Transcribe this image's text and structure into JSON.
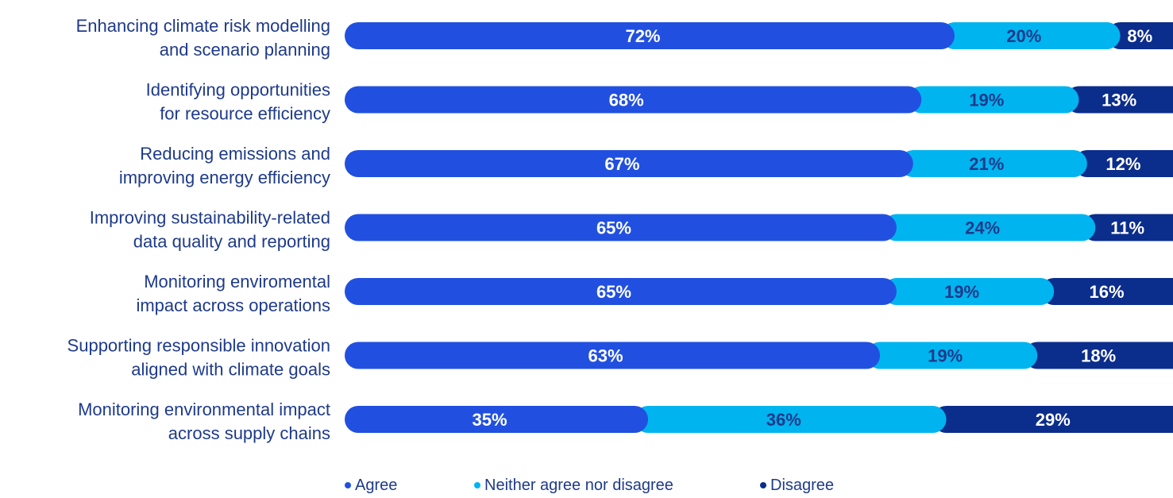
{
  "chart_data": {
    "type": "bar",
    "orientation": "horizontal",
    "stacked": true,
    "title": "",
    "xlabel": "",
    "ylabel": "",
    "xlim": [
      0,
      100
    ],
    "grid": false,
    "legend_position": "bottom",
    "categories": [
      [
        "Enhancing climate risk modelling",
        "and scenario planning"
      ],
      [
        "Identifying opportunities",
        "for resource efficiency"
      ],
      [
        "Reducing emissions and",
        "improving energy efficiency"
      ],
      [
        "Improving sustainability-related",
        "data quality and reporting"
      ],
      [
        "Monitoring enviromental",
        "impact across operations"
      ],
      [
        "Supporting responsible innovation",
        "aligned with climate goals"
      ],
      [
        "Monitoring environmental impact",
        "across supply chains"
      ]
    ],
    "series": [
      {
        "name": "Agree",
        "color": "#2150e0",
        "text_color": "#ffffff",
        "values": [
          72,
          68,
          67,
          65,
          65,
          63,
          35
        ]
      },
      {
        "name": "Neither agree nor disagree",
        "color": "#00b4f0",
        "text_color": "#1e3a8a",
        "values": [
          20,
          19,
          21,
          24,
          19,
          19,
          36
        ]
      },
      {
        "name": "Disagree",
        "color": "#0b2d8c",
        "text_color": "#ffffff",
        "values": [
          8,
          13,
          12,
          11,
          16,
          18,
          29
        ]
      }
    ],
    "value_suffix": "%"
  }
}
